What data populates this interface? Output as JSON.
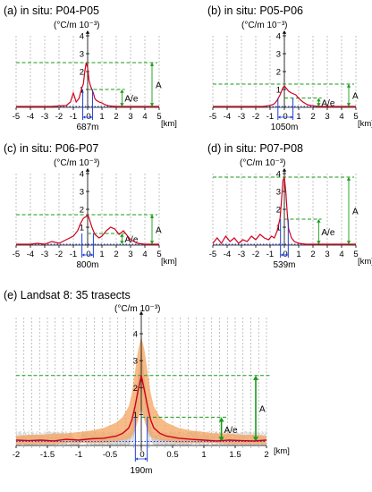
{
  "figure_texts": {
    "unit_label": "(°C/m 10⁻³)",
    "x_unit": "[km]",
    "amplitude_label": "A",
    "ae_label": "A/e"
  },
  "chart_data": [
    {
      "id": "a",
      "type": "line",
      "title": "(a) in situ: P04-P05",
      "ylabel": "(°C/m 10⁻³)",
      "xlabel": "[km]",
      "xlim": [
        -5,
        5
      ],
      "ylim": [
        0,
        4
      ],
      "xticks": [
        -5,
        -4,
        -3,
        -2,
        -1,
        0,
        1,
        2,
        3,
        4,
        5
      ],
      "yticks": [
        1,
        2,
        3,
        4
      ],
      "baseline": 0.05,
      "amplitude": 2.5,
      "ae_level": 1.0,
      "width_label": "687m",
      "width_km": [
        -0.34,
        0.34
      ],
      "x": [
        -5,
        -4.5,
        -4,
        -3.5,
        -3,
        -2.5,
        -2,
        -1.5,
        -1.2,
        -1,
        -0.8,
        -0.6,
        -0.5,
        -0.4,
        -0.3,
        -0.2,
        -0.1,
        0,
        0.1,
        0.2,
        0.3,
        0.4,
        0.5,
        0.6,
        0.8,
        1,
        1.2,
        1.5,
        2,
        2.5,
        3,
        3.5,
        4,
        4.5,
        5
      ],
      "y": [
        0.05,
        0.05,
        0.05,
        0.05,
        0.05,
        0.05,
        0.08,
        0.1,
        0.3,
        0.8,
        0.3,
        0.5,
        0.8,
        1.1,
        1.3,
        2.0,
        2.5,
        2.2,
        1.5,
        1.2,
        1.0,
        0.8,
        0.5,
        0.4,
        0.3,
        0.25,
        0.15,
        0.08,
        0.05,
        0.05,
        0.05,
        0.05,
        0.05,
        0.05,
        0.05
      ]
    },
    {
      "id": "b",
      "type": "line",
      "title": "(b) in situ: P05-P06",
      "ylabel": "(°C/m 10⁻³)",
      "xlabel": "[km]",
      "xlim": [
        -5,
        5
      ],
      "ylim": [
        0,
        4
      ],
      "xticks": [
        -5,
        -4,
        -3,
        -2,
        -1,
        0,
        1,
        2,
        3,
        4,
        5
      ],
      "yticks": [
        1,
        2,
        3,
        4
      ],
      "baseline": 0.05,
      "amplitude": 1.3,
      "ae_level": 0.52,
      "width_label": "1050m",
      "width_km": [
        -0.45,
        0.6
      ],
      "x": [
        -5,
        -4,
        -3,
        -2,
        -1.5,
        -1,
        -0.7,
        -0.5,
        -0.3,
        -0.1,
        0,
        0.1,
        0.3,
        0.5,
        0.8,
        1.0,
        1.3,
        1.6,
        2.0,
        2.5,
        3,
        4,
        5
      ],
      "y": [
        0.05,
        0.05,
        0.05,
        0.05,
        0.05,
        0.1,
        0.2,
        0.4,
        0.7,
        1.1,
        1.2,
        1.1,
        0.9,
        0.8,
        0.7,
        0.5,
        0.3,
        0.15,
        0.08,
        0.05,
        0.05,
        0.05,
        0.05
      ]
    },
    {
      "id": "c",
      "type": "line",
      "title": "(c) in situ: P06-P07",
      "ylabel": "(°C/m 10⁻³)",
      "xlabel": "[km]",
      "xlim": [
        -5,
        5
      ],
      "ylim": [
        0,
        4
      ],
      "xticks": [
        -5,
        -4,
        -3,
        -2,
        -1,
        0,
        1,
        2,
        3,
        4,
        5
      ],
      "yticks": [
        1,
        2,
        3,
        4
      ],
      "baseline": 0.05,
      "amplitude": 1.7,
      "ae_level": 0.65,
      "width_label": "800m",
      "width_km": [
        -0.4,
        0.4
      ],
      "x": [
        -5,
        -4,
        -3.5,
        -3,
        -2.5,
        -2,
        -1.5,
        -1,
        -0.7,
        -0.5,
        -0.3,
        -0.1,
        0,
        0.1,
        0.3,
        0.5,
        0.8,
        1.0,
        1.3,
        1.6,
        1.9,
        2.2,
        2.5,
        2.8,
        3.0,
        3.5,
        4,
        4.5,
        5
      ],
      "y": [
        0.05,
        0.05,
        0.1,
        0.05,
        0.2,
        0.1,
        0.3,
        0.5,
        0.8,
        1.2,
        1.5,
        1.6,
        1.7,
        1.5,
        1.0,
        0.6,
        0.4,
        0.5,
        0.8,
        1.0,
        0.9,
        0.6,
        0.8,
        0.5,
        0.3,
        0.1,
        0.05,
        0.05,
        0.05
      ]
    },
    {
      "id": "d",
      "type": "line",
      "title": "(d) in situ: P07-P08",
      "ylabel": "(°C/m 10⁻³)",
      "xlabel": "[km]",
      "xlim": [
        -5,
        5
      ],
      "ylim": [
        0,
        4
      ],
      "xticks": [
        -5,
        -4,
        -3,
        -2,
        -1,
        0,
        1,
        2,
        3,
        4,
        5
      ],
      "yticks": [
        1,
        2,
        3,
        4
      ],
      "baseline": 0.05,
      "amplitude": 3.8,
      "ae_level": 1.45,
      "width_label": "539m",
      "width_km": [
        -0.27,
        0.27
      ],
      "x": [
        -5,
        -4.7,
        -4.4,
        -4.1,
        -3.8,
        -3.5,
        -3.2,
        -2.9,
        -2.6,
        -2.3,
        -2.0,
        -1.7,
        -1.4,
        -1.1,
        -0.9,
        -0.7,
        -0.5,
        -0.3,
        -0.2,
        -0.1,
        0,
        0.1,
        0.2,
        0.3,
        0.5,
        0.7,
        1.0,
        1.5,
        2,
        3,
        4,
        5
      ],
      "y": [
        0.1,
        0.4,
        0.1,
        0.5,
        0.2,
        0.4,
        0.1,
        0.3,
        0.2,
        0.5,
        0.3,
        0.6,
        0.4,
        0.3,
        0.5,
        0.4,
        0.8,
        1.5,
        2.5,
        3.6,
        3.8,
        3.0,
        1.8,
        0.9,
        0.4,
        0.2,
        0.1,
        0.05,
        0.05,
        0.05,
        0.05,
        0.05
      ]
    },
    {
      "id": "e",
      "type": "line",
      "title": "(e) Landsat 8: 35 trasects",
      "ylabel": "(°C/m 10⁻³)",
      "xlabel": "[km]",
      "xlim": [
        -2,
        2
      ],
      "ylim": [
        -0.15,
        4.6
      ],
      "xticks": [
        -2,
        -1.5,
        -1,
        -0.5,
        0,
        0.5,
        1,
        1.5,
        2
      ],
      "yticks": [
        1,
        2,
        3,
        4
      ],
      "baseline": 0,
      "amplitude": 2.45,
      "ae_level": 0.9,
      "width_label": "190m",
      "width_km": [
        -0.095,
        0.095
      ],
      "x": [
        -2,
        -1.8,
        -1.6,
        -1.4,
        -1.2,
        -1.0,
        -0.8,
        -0.6,
        -0.4,
        -0.3,
        -0.2,
        -0.15,
        -0.1,
        -0.05,
        0,
        0.05,
        0.1,
        0.15,
        0.2,
        0.3,
        0.4,
        0.6,
        0.8,
        1.0,
        1.2,
        1.4,
        1.6,
        1.8,
        2
      ],
      "y": [
        0.05,
        0.03,
        0.05,
        0.02,
        0.08,
        0.05,
        0.1,
        0.12,
        0.2,
        0.3,
        0.5,
        0.8,
        1.3,
        1.9,
        2.45,
        1.9,
        1.3,
        0.8,
        0.5,
        0.3,
        0.2,
        0.12,
        0.08,
        0.05,
        0.02,
        0.05,
        0.03,
        0.02,
        0.05
      ],
      "band_lower": [
        -0.1,
        -0.1,
        -0.1,
        -0.1,
        -0.05,
        -0.05,
        -0.05,
        -0.05,
        0,
        0.05,
        0.1,
        0.2,
        0.4,
        0.8,
        1.2,
        0.8,
        0.4,
        0.2,
        0.1,
        0.05,
        0,
        -0.05,
        -0.05,
        -0.05,
        -0.05,
        -0.1,
        -0.1,
        -0.1,
        -0.1
      ],
      "band_upper": [
        0.2,
        0.25,
        0.25,
        0.3,
        0.3,
        0.35,
        0.4,
        0.5,
        0.7,
        0.9,
        1.3,
        1.8,
        2.6,
        3.4,
        3.9,
        3.4,
        2.6,
        1.8,
        1.3,
        0.9,
        0.7,
        0.5,
        0.4,
        0.35,
        0.3,
        0.3,
        0.25,
        0.25,
        0.2
      ]
    }
  ]
}
